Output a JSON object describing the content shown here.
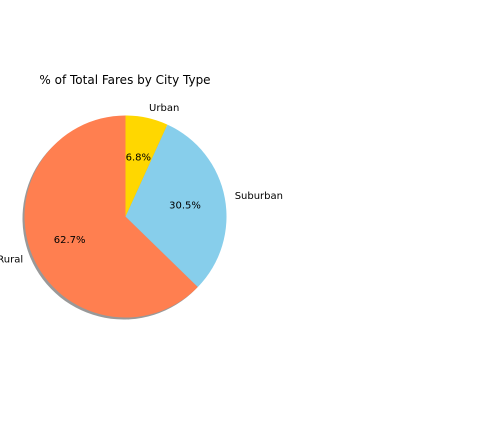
{
  "chart_data": {
    "type": "pie",
    "title": "% of Total Fares by City Type",
    "categories": [
      "Rural",
      "Suburban",
      "Urban"
    ],
    "values": [
      62.7,
      30.5,
      6.8
    ],
    "value_labels": [
      "62.7%",
      "30.5%",
      "6.8%"
    ],
    "colors": [
      "#ff7f50",
      "#87ceeb",
      "#ffd700"
    ],
    "shadow": true,
    "legend": "none",
    "xlabel": "",
    "ylabel": ""
  }
}
